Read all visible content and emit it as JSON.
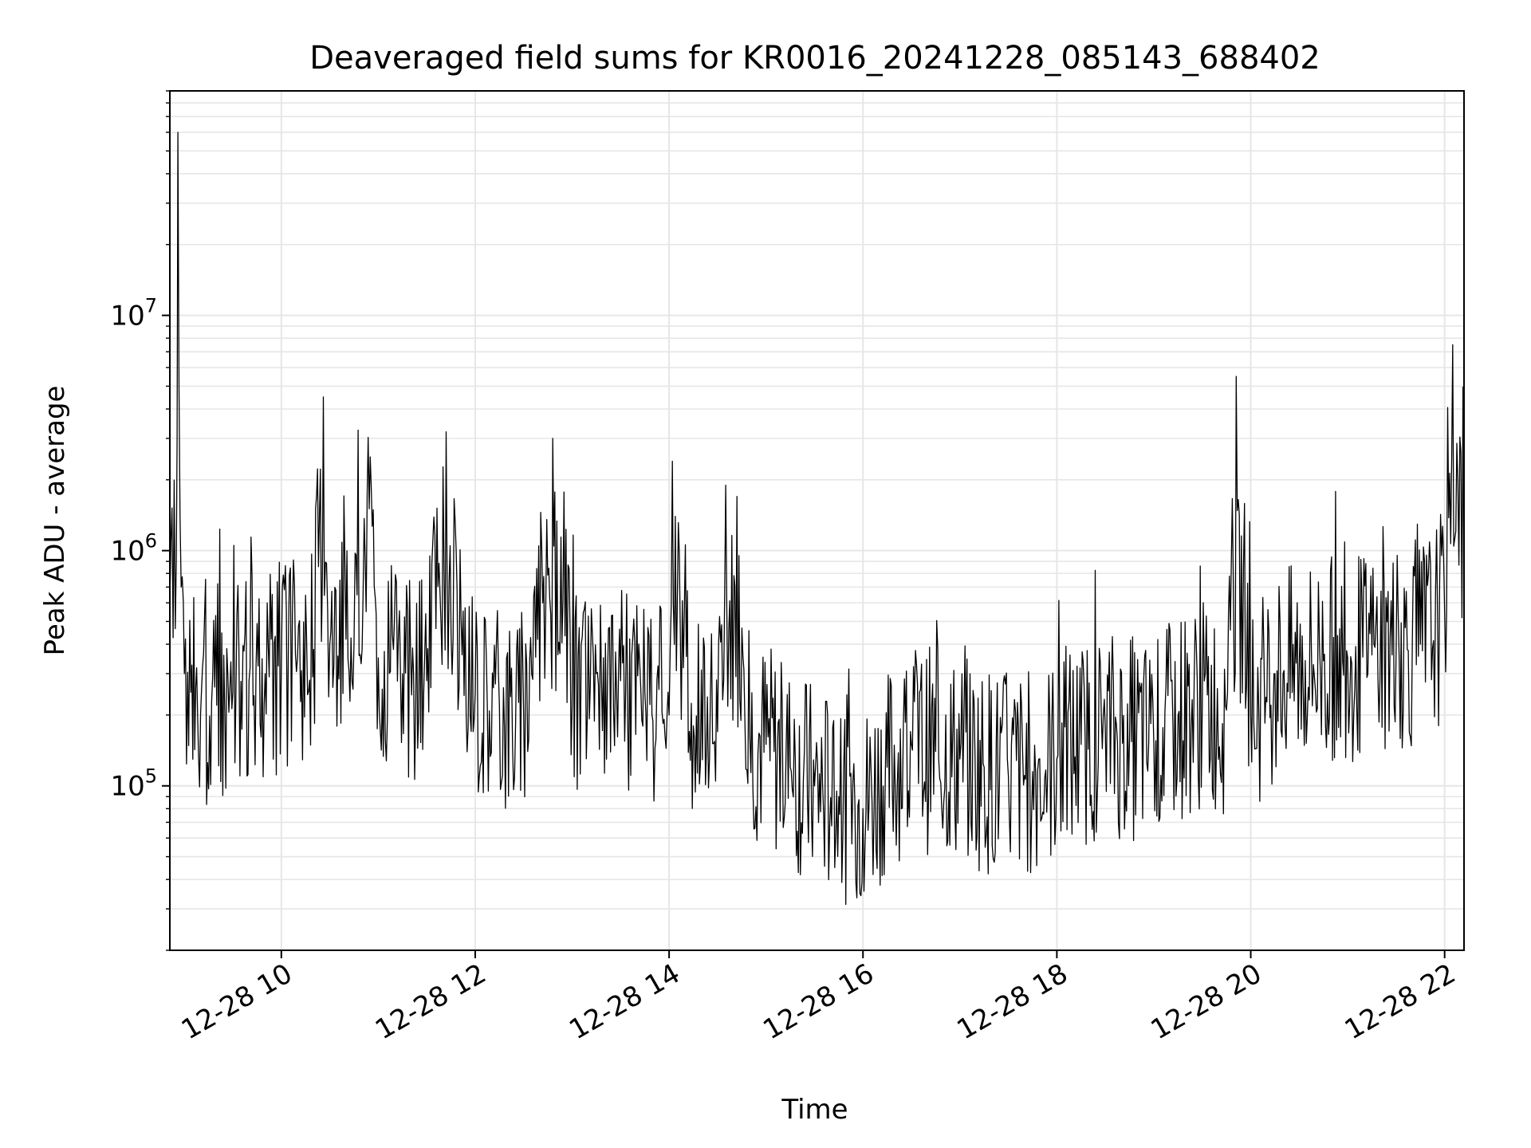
{
  "chart_data": {
    "type": "line",
    "title": "Deaveraged field sums for KR0016_20241228_085143_688402",
    "xlabel": "Time",
    "ylabel": "Peak ADU - average",
    "x_axis": {
      "kind": "datetime",
      "range": [
        "2024-12-28 08:51",
        "2024-12-28 22:12"
      ],
      "ticks": [
        {
          "value": "2024-12-28 10:00",
          "label": "12-28 10"
        },
        {
          "value": "2024-12-28 12:00",
          "label": "12-28 12"
        },
        {
          "value": "2024-12-28 14:00",
          "label": "12-28 14"
        },
        {
          "value": "2024-12-28 16:00",
          "label": "12-28 16"
        },
        {
          "value": "2024-12-28 18:00",
          "label": "12-28 18"
        },
        {
          "value": "2024-12-28 20:00",
          "label": "12-28 20"
        },
        {
          "value": "2024-12-28 22:00",
          "label": "12-28 22"
        }
      ],
      "tick_label_rotation": 30
    },
    "y_axis": {
      "scale": "log",
      "range": [
        20000,
        90000000
      ],
      "ticks": [
        {
          "value": 100000,
          "base": "10",
          "exp": "5"
        },
        {
          "value": 1000000,
          "base": "10",
          "exp": "6"
        },
        {
          "value": 10000000,
          "base": "10",
          "exp": "7"
        }
      ]
    },
    "grid": true,
    "line_color": "#000000",
    "series": [
      {
        "x": [
          "2024-12-28 08:51",
          "2024-12-28 08:55",
          "2024-12-28 08:56",
          "2024-12-28 08:58",
          "2024-12-28 09:00",
          "2024-12-28 09:04",
          "2024-12-28 09:10",
          "2024-12-28 09:20",
          "2024-12-28 09:30",
          "2024-12-28 09:40",
          "2024-12-28 09:50",
          "2024-12-28 10:00",
          "2024-12-28 10:10",
          "2024-12-28 10:20",
          "2024-12-28 10:26",
          "2024-12-28 10:30",
          "2024-12-28 10:40",
          "2024-12-28 10:50",
          "2024-12-28 10:55",
          "2024-12-28 11:00",
          "2024-12-28 11:15",
          "2024-12-28 11:30",
          "2024-12-28 11:42",
          "2024-12-28 11:50",
          "2024-12-28 12:00",
          "2024-12-28 12:15",
          "2024-12-28 12:30",
          "2024-12-28 12:48",
          "2024-12-28 13:00",
          "2024-12-28 13:15",
          "2024-12-28 13:30",
          "2024-12-28 13:45",
          "2024-12-28 14:00",
          "2024-12-28 14:02",
          "2024-12-28 14:15",
          "2024-12-28 14:30",
          "2024-12-28 14:42",
          "2024-12-28 14:50",
          "2024-12-28 15:00",
          "2024-12-28 15:15",
          "2024-12-28 15:30",
          "2024-12-28 15:45",
          "2024-12-28 15:55",
          "2024-12-28 16:00",
          "2024-12-28 16:15",
          "2024-12-28 16:30",
          "2024-12-28 16:45",
          "2024-12-28 17:00",
          "2024-12-28 17:15",
          "2024-12-28 17:30",
          "2024-12-28 17:45",
          "2024-12-28 18:00",
          "2024-12-28 18:15",
          "2024-12-28 18:30",
          "2024-12-28 18:45",
          "2024-12-28 19:00",
          "2024-12-28 19:15",
          "2024-12-28 19:30",
          "2024-12-28 19:45",
          "2024-12-28 19:51",
          "2024-12-28 20:00",
          "2024-12-28 20:15",
          "2024-12-28 20:30",
          "2024-12-28 20:45",
          "2024-12-28 21:00",
          "2024-12-28 21:15",
          "2024-12-28 21:30",
          "2024-12-28 21:45",
          "2024-12-28 22:00",
          "2024-12-28 22:05",
          "2024-12-28 22:12"
        ],
        "y": [
          600000,
          900000,
          60000000,
          700000,
          300000,
          250000,
          200000,
          220000,
          250000,
          280000,
          300000,
          320000,
          350000,
          380000,
          4500000,
          400000,
          420000,
          380000,
          2500000,
          350000,
          300000,
          280000,
          3200000,
          260000,
          250000,
          220000,
          200000,
          3000000,
          220000,
          300000,
          280000,
          250000,
          200000,
          2400000,
          180000,
          170000,
          1700000,
          160000,
          150000,
          120000,
          100000,
          90000,
          85000,
          80000,
          120000,
          150000,
          140000,
          130000,
          120000,
          110000,
          115000,
          130000,
          150000,
          170000,
          160000,
          150000,
          200000,
          220000,
          210000,
          5500000,
          200000,
          300000,
          320000,
          340000,
          350000,
          360000,
          380000,
          400000,
          550000,
          7500000,
          700000
        ]
      }
    ]
  }
}
